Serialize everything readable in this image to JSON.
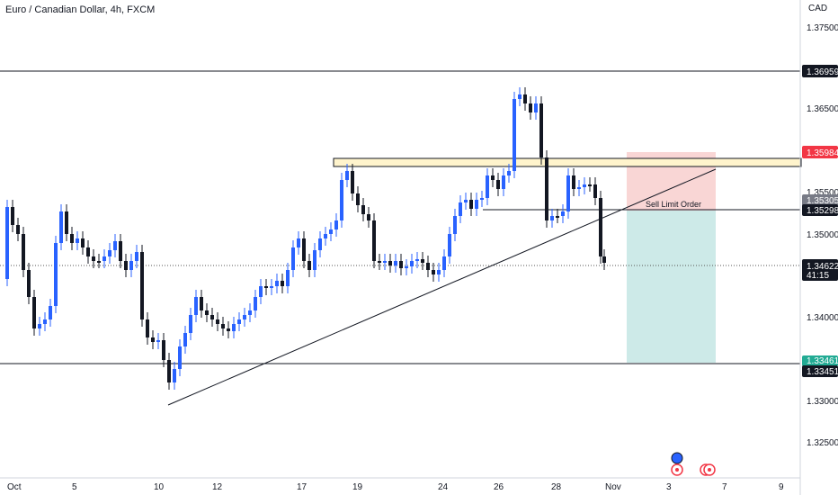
{
  "header": {
    "title": "Euro / Canadian Dollar, 4h, FXCM"
  },
  "axis": {
    "currency": "CAD",
    "price_ticks": [
      "1.37500",
      "1.36500",
      "1.35500",
      "1.35000",
      "1.34000",
      "1.33000",
      "1.32500"
    ],
    "date_ticks": [
      "Oct",
      "5",
      "10",
      "12",
      "17",
      "19",
      "24",
      "26",
      "28",
      "Nov",
      "3",
      "7",
      "9"
    ]
  },
  "price_labels": {
    "resistance": "1.36959",
    "stop": "1.35984",
    "prev_close": "1.35305",
    "entry": "1.35298",
    "last": "1.34622",
    "countdown": "41:15",
    "target": "1.33461",
    "support": "1.33451"
  },
  "annotations": {
    "order_label": "Sell Limit Order"
  },
  "colors": {
    "bull": "#2962ff",
    "bear": "#131722",
    "stop_zone": "#f9d6d5",
    "target_zone": "#cdeae8",
    "supply_zone": "#fff4cc",
    "stop_label": "#f23645",
    "line": "#131722"
  },
  "events": [
    {
      "type": "calendar-event-icon",
      "color": "#2962ff"
    },
    {
      "type": "calendar-event-icon",
      "color": "#f23645"
    },
    {
      "type": "calendar-event-icon",
      "color": "#f23645"
    }
  ]
}
